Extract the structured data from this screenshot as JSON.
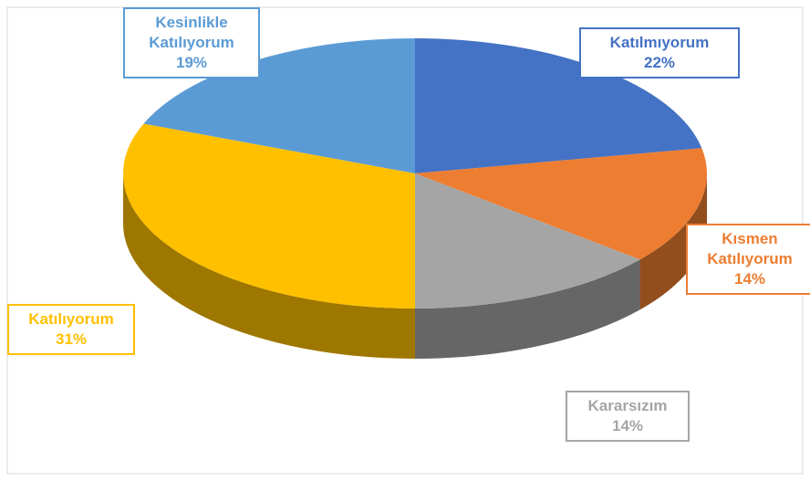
{
  "chart_data": {
    "type": "pie",
    "categories": [
      "Katılmıyorum",
      "Kısmen Katılıyorum",
      "Kararsızım",
      "Katılıyorum",
      "Kesinlikle Katılıyorum"
    ],
    "values": [
      22,
      14,
      14,
      31,
      19
    ],
    "value_labels": [
      "22%",
      "14%",
      "14%",
      "31%",
      "19%"
    ],
    "colors": [
      "#4472c4",
      "#ed7d31",
      "#a5a5a5",
      "#ffc000",
      "#5b9bd5"
    ]
  }
}
